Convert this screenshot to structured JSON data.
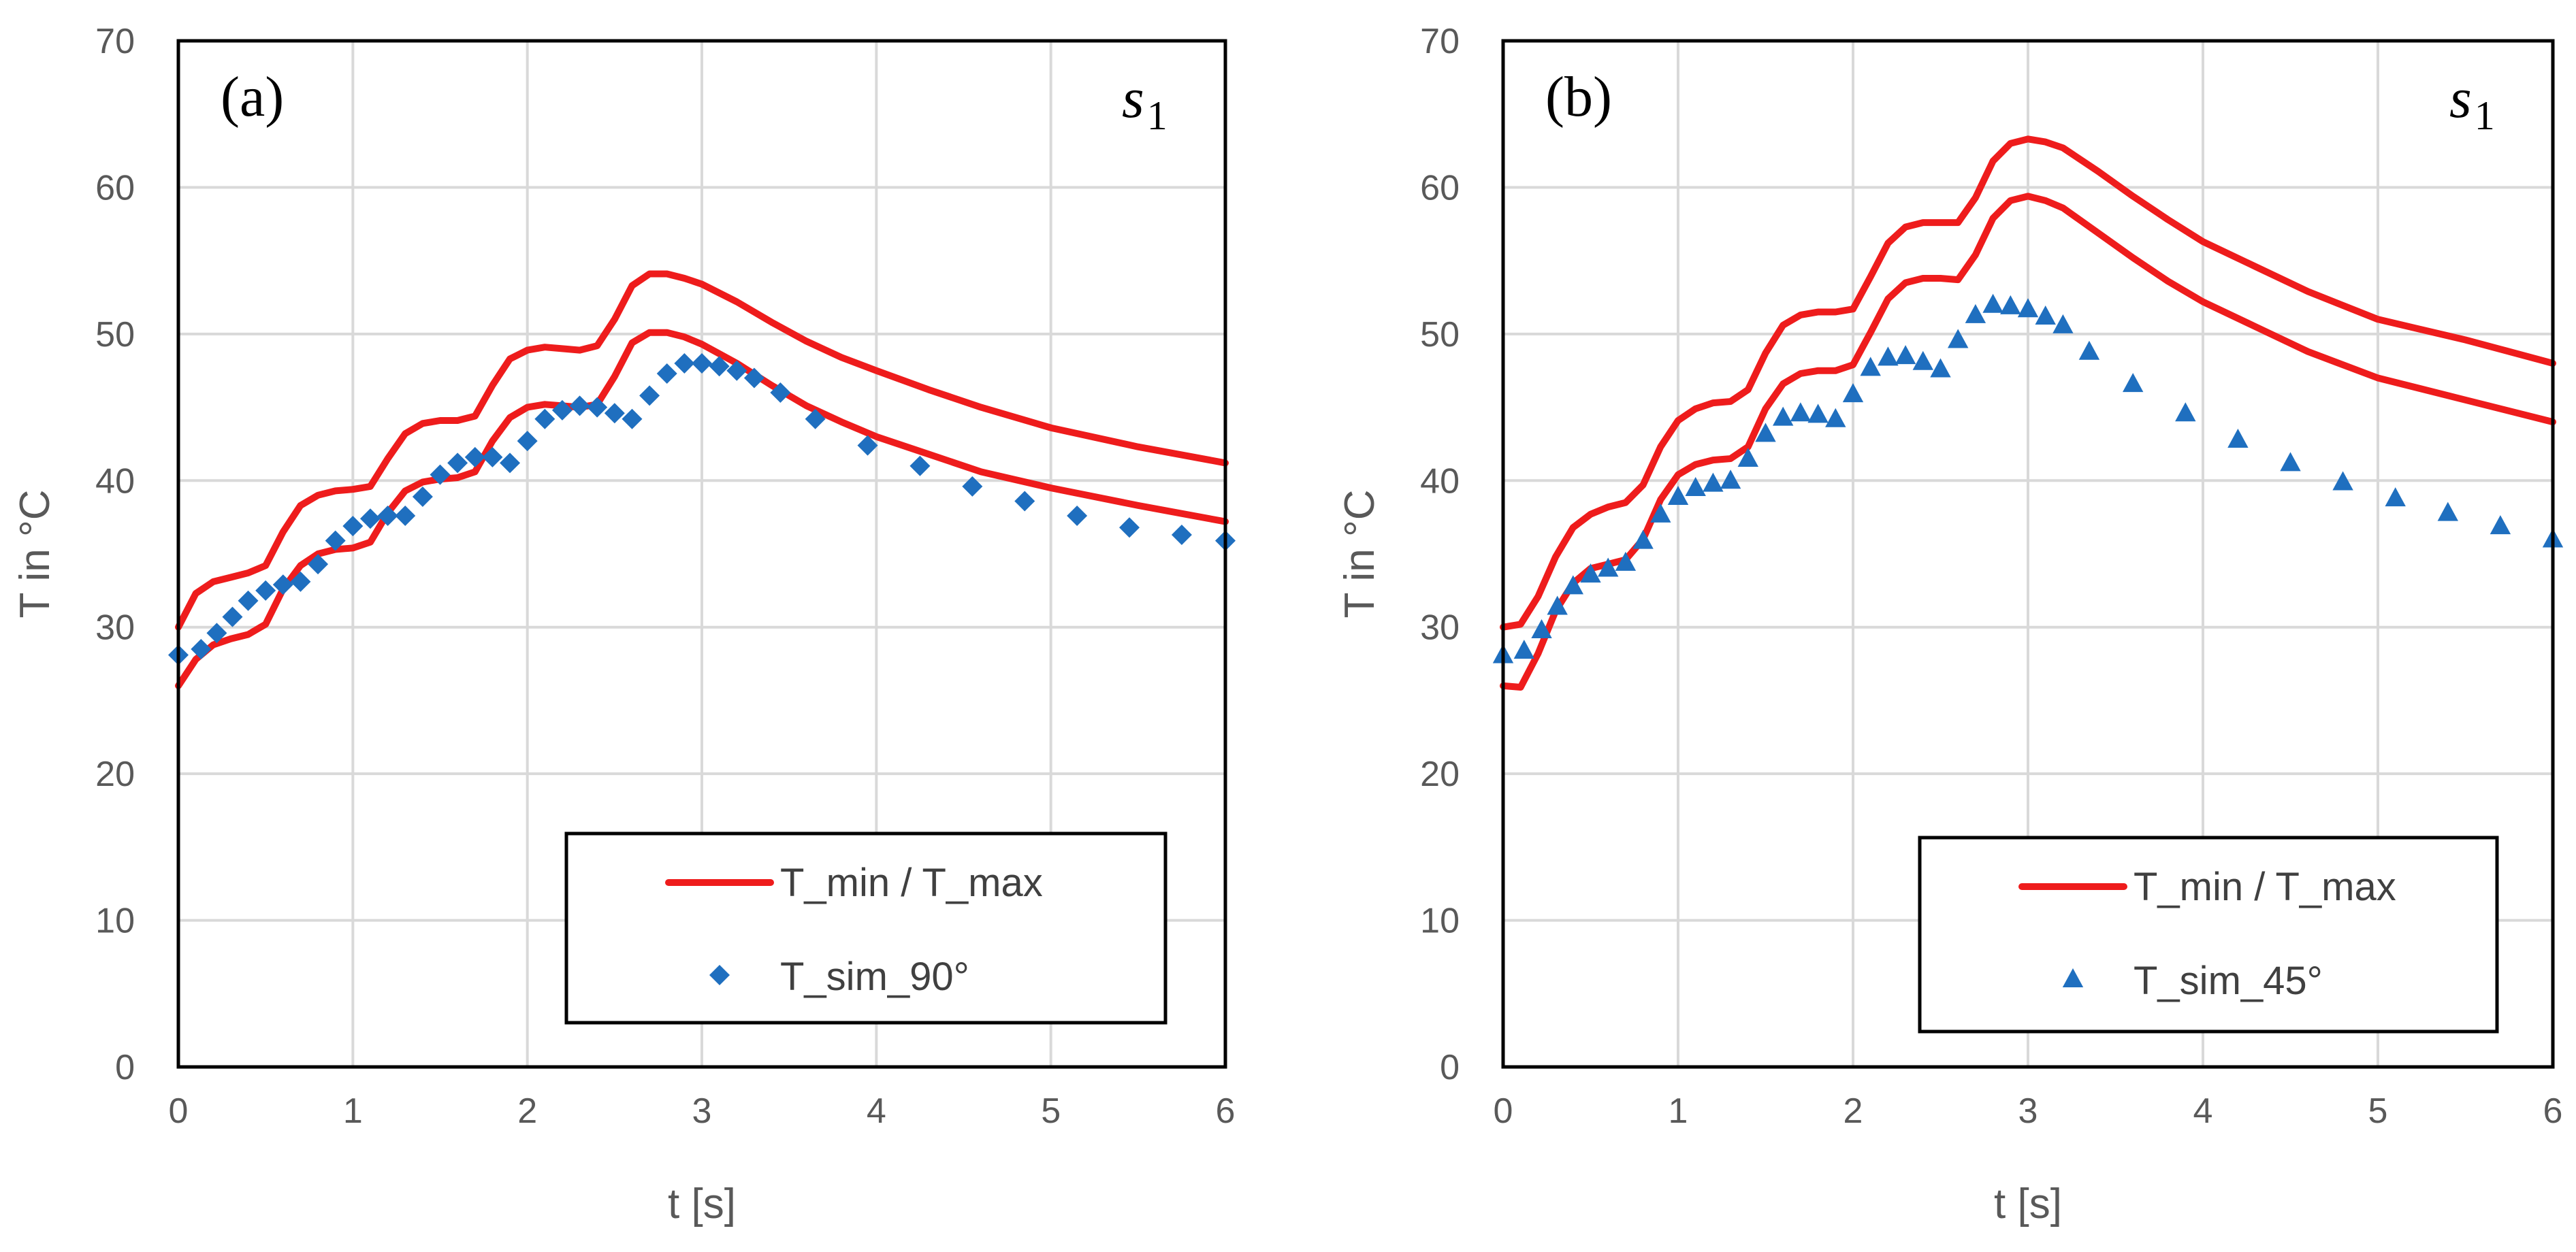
{
  "colors": {
    "line": "#ee1c1c",
    "marker": "#1f6fbf",
    "grid": "#d9d9d9",
    "axis_text": "#595959"
  },
  "chart_data": [
    {
      "type": "line",
      "panel_label": "(a)",
      "series_label": {
        "base": "s",
        "sub": "1"
      },
      "xlabel": "t [s]",
      "ylabel": "T in °C",
      "xlim": [
        0,
        6
      ],
      "ylim": [
        0,
        70
      ],
      "xticks": [
        "0",
        "1",
        "2",
        "3",
        "4",
        "5",
        "6"
      ],
      "yticks": [
        "0",
        "10",
        "20",
        "30",
        "40",
        "50",
        "60",
        "70"
      ],
      "grid": true,
      "legend_position": "bottom-right",
      "legend": [
        {
          "label": "T_min / T_max",
          "marker": "line"
        },
        {
          "label": "T_sim_90°",
          "marker": "diamond"
        }
      ],
      "series": [
        {
          "name": "T_max",
          "style": "line",
          "x": [
            0,
            0.1,
            0.2,
            0.3,
            0.4,
            0.5,
            0.6,
            0.7,
            0.8,
            0.9,
            1.0,
            1.1,
            1.2,
            1.3,
            1.4,
            1.5,
            1.6,
            1.7,
            1.8,
            1.9,
            2.0,
            2.1,
            2.2,
            2.3,
            2.4,
            2.5,
            2.6,
            2.7,
            2.8,
            2.9,
            3.0,
            3.2,
            3.4,
            3.6,
            3.8,
            4.0,
            4.3,
            4.6,
            5.0,
            5.5,
            6.0
          ],
          "values": [
            30,
            32.3,
            33.1,
            33.4,
            33.7,
            34.2,
            36.5,
            38.3,
            39.0,
            39.3,
            39.4,
            39.6,
            41.5,
            43.2,
            43.9,
            44.1,
            44.1,
            44.4,
            46.5,
            48.3,
            48.9,
            49.1,
            49.0,
            48.9,
            49.2,
            51.0,
            53.3,
            54.1,
            54.1,
            53.8,
            53.4,
            52.2,
            50.8,
            49.5,
            48.4,
            47.5,
            46.2,
            45.0,
            43.6,
            42.3,
            41.2
          ]
        },
        {
          "name": "T_min",
          "style": "line",
          "x": [
            0,
            0.1,
            0.2,
            0.3,
            0.4,
            0.5,
            0.6,
            0.7,
            0.8,
            0.9,
            1.0,
            1.1,
            1.2,
            1.3,
            1.4,
            1.5,
            1.6,
            1.7,
            1.8,
            1.9,
            2.0,
            2.1,
            2.2,
            2.3,
            2.4,
            2.5,
            2.6,
            2.7,
            2.8,
            2.9,
            3.0,
            3.2,
            3.4,
            3.6,
            3.8,
            4.0,
            4.3,
            4.6,
            5.0,
            5.5,
            6.0
          ],
          "values": [
            26,
            27.8,
            28.8,
            29.2,
            29.5,
            30.2,
            32.6,
            34.2,
            35.0,
            35.3,
            35.4,
            35.8,
            37.8,
            39.3,
            39.9,
            40.1,
            40.2,
            40.6,
            42.7,
            44.3,
            45.0,
            45.2,
            45.1,
            45.0,
            45.2,
            47.1,
            49.4,
            50.1,
            50.1,
            49.8,
            49.3,
            48.0,
            46.5,
            45.1,
            44.0,
            43.0,
            41.8,
            40.6,
            39.5,
            38.3,
            37.2
          ]
        },
        {
          "name": "T_sim_90°",
          "style": "diamond",
          "x": [
            0,
            0.13,
            0.22,
            0.31,
            0.4,
            0.5,
            0.6,
            0.7,
            0.8,
            0.9,
            1.0,
            1.1,
            1.2,
            1.3,
            1.4,
            1.5,
            1.6,
            1.7,
            1.8,
            1.9,
            2.0,
            2.1,
            2.2,
            2.3,
            2.4,
            2.5,
            2.6,
            2.7,
            2.8,
            2.9,
            3.0,
            3.1,
            3.2,
            3.3,
            3.45,
            3.65,
            3.95,
            4.25,
            4.55,
            4.85,
            5.15,
            5.45,
            5.75,
            6.0
          ],
          "values": [
            28.1,
            28.5,
            29.6,
            30.7,
            31.8,
            32.5,
            32.9,
            33.1,
            34.3,
            35.9,
            36.9,
            37.4,
            37.6,
            37.6,
            38.9,
            40.4,
            41.2,
            41.6,
            41.6,
            41.2,
            42.7,
            44.2,
            44.8,
            45.1,
            45.0,
            44.6,
            44.2,
            45.8,
            47.3,
            48.0,
            48.0,
            47.8,
            47.5,
            47.0,
            46.0,
            44.2,
            42.4,
            41.0,
            39.6,
            38.6,
            37.6,
            36.8,
            36.3,
            35.9
          ]
        }
      ]
    },
    {
      "type": "line",
      "panel_label": "(b)",
      "series_label": {
        "base": "s",
        "sub": "1"
      },
      "xlabel": "t [s]",
      "ylabel": "T in °C",
      "xlim": [
        0,
        6
      ],
      "ylim": [
        0,
        70
      ],
      "xticks": [
        "0",
        "1",
        "2",
        "3",
        "4",
        "5",
        "6"
      ],
      "yticks": [
        "0",
        "10",
        "20",
        "30",
        "40",
        "50",
        "60",
        "70"
      ],
      "grid": true,
      "legend_position": "bottom-right",
      "legend": [
        {
          "label": "T_min / T_max",
          "marker": "line"
        },
        {
          "label": "T_sim_45°",
          "marker": "triangle"
        }
      ],
      "series": [
        {
          "name": "T_max",
          "style": "line",
          "x": [
            0,
            0.1,
            0.2,
            0.3,
            0.4,
            0.5,
            0.6,
            0.7,
            0.8,
            0.9,
            1.0,
            1.1,
            1.2,
            1.3,
            1.4,
            1.5,
            1.6,
            1.7,
            1.8,
            1.9,
            2.0,
            2.1,
            2.2,
            2.3,
            2.4,
            2.5,
            2.6,
            2.7,
            2.8,
            2.9,
            3.0,
            3.1,
            3.2,
            3.4,
            3.6,
            3.8,
            4.0,
            4.3,
            4.6,
            5.0,
            5.5,
            6.0
          ],
          "values": [
            30,
            30.2,
            32.1,
            34.8,
            36.8,
            37.7,
            38.2,
            38.5,
            39.7,
            42.3,
            44.1,
            44.9,
            45.3,
            45.4,
            46.2,
            48.7,
            50.6,
            51.3,
            51.5,
            51.5,
            51.7,
            53.9,
            56.2,
            57.3,
            57.6,
            57.6,
            57.6,
            59.3,
            61.8,
            63.0,
            63.3,
            63.1,
            62.7,
            61.1,
            59.4,
            57.8,
            56.3,
            54.6,
            52.9,
            51.0,
            49.6,
            48.0
          ]
        },
        {
          "name": "T_min",
          "style": "line",
          "x": [
            0,
            0.1,
            0.2,
            0.3,
            0.4,
            0.5,
            0.6,
            0.7,
            0.8,
            0.9,
            1.0,
            1.1,
            1.2,
            1.3,
            1.4,
            1.5,
            1.6,
            1.7,
            1.8,
            1.9,
            2.0,
            2.1,
            2.2,
            2.3,
            2.4,
            2.5,
            2.6,
            2.7,
            2.8,
            2.9,
            3.0,
            3.1,
            3.2,
            3.4,
            3.6,
            3.8,
            4.0,
            4.3,
            4.6,
            5.0,
            5.5,
            6.0
          ],
          "values": [
            26,
            25.9,
            28.2,
            31.1,
            33.0,
            34.0,
            34.3,
            34.6,
            36.0,
            38.7,
            40.4,
            41.1,
            41.4,
            41.5,
            42.3,
            44.9,
            46.6,
            47.3,
            47.5,
            47.5,
            47.9,
            50.1,
            52.4,
            53.5,
            53.8,
            53.8,
            53.7,
            55.4,
            57.9,
            59.1,
            59.4,
            59.1,
            58.6,
            56.9,
            55.2,
            53.6,
            52.2,
            50.5,
            48.8,
            47.0,
            45.5,
            44.0
          ]
        },
        {
          "name": "T_sim_45°",
          "style": "triangle",
          "x": [
            0,
            0.12,
            0.22,
            0.31,
            0.4,
            0.5,
            0.6,
            0.7,
            0.8,
            0.9,
            1.0,
            1.1,
            1.2,
            1.3,
            1.4,
            1.5,
            1.6,
            1.7,
            1.8,
            1.9,
            2.0,
            2.1,
            2.2,
            2.3,
            2.4,
            2.5,
            2.6,
            2.7,
            2.8,
            2.9,
            3.0,
            3.1,
            3.2,
            3.35,
            3.6,
            3.9,
            4.2,
            4.5,
            4.8,
            5.1,
            5.4,
            5.7,
            6.0
          ],
          "values": [
            28.1,
            28.4,
            29.8,
            31.4,
            32.8,
            33.6,
            34.0,
            34.4,
            35.9,
            37.7,
            38.9,
            39.5,
            39.8,
            40.0,
            41.5,
            43.2,
            44.3,
            44.6,
            44.5,
            44.2,
            45.9,
            47.7,
            48.4,
            48.5,
            48.1,
            47.6,
            49.6,
            51.3,
            52.0,
            51.9,
            51.7,
            51.2,
            50.6,
            48.8,
            46.6,
            44.6,
            42.8,
            41.2,
            39.9,
            38.8,
            37.8,
            36.9,
            36.0
          ]
        }
      ]
    }
  ]
}
